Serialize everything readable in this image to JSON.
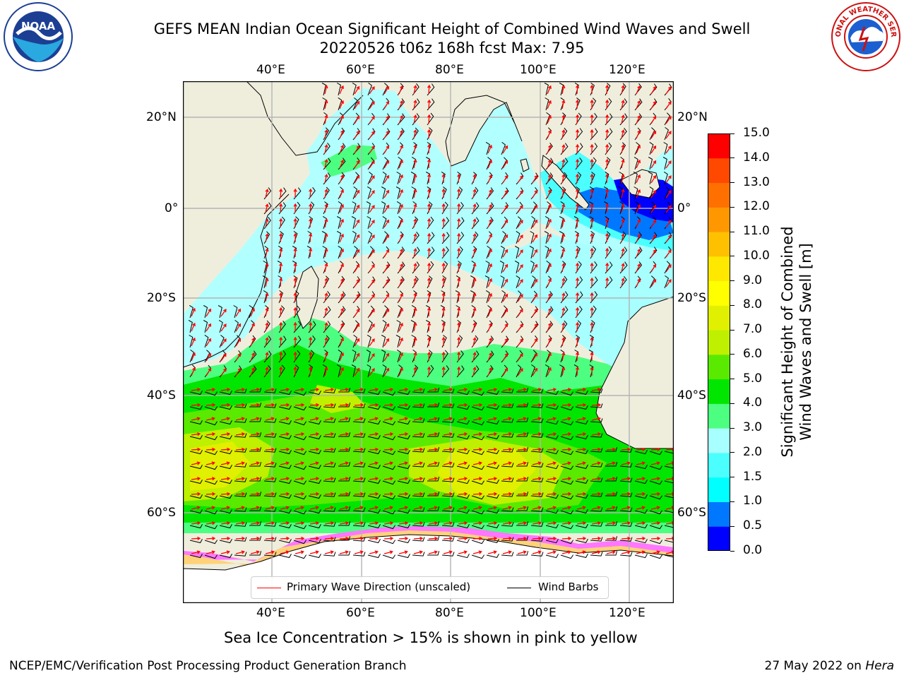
{
  "title": {
    "line1": "GEFS MEAN Indian Ocean Significant Height of Combined Wind Waves and Swell",
    "line2": "20220526 t06z 168h fcst   Max: 7.95"
  },
  "logos": {
    "left": {
      "name": "NOAA",
      "ring_text": "NATIONAL OCEANIC AND ATMOSPHERIC ADMINISTRATION",
      "bottom_text": "U.S. DEPARTMENT OF COMMERCE"
    },
    "right": {
      "name": "NATIONAL WEATHER SERVICE"
    }
  },
  "map": {
    "lon_labels": [
      "40°E",
      "60°E",
      "80°E",
      "100°E",
      "120°E"
    ],
    "lat_labels": [
      "20°N",
      "0°",
      "20°S",
      "40°S",
      "60°S"
    ],
    "colors": {
      "land": "#efeedd",
      "ocean_calm": "#b2ffff",
      "grid": "#b4b4b4",
      "wave_arrow": "#ff0000",
      "barb": "#000000",
      "ice": "#ffffff"
    }
  },
  "legend": {
    "wave": "Primary Wave Direction (unscaled)",
    "wind": "Wind Barbs"
  },
  "colorbar": {
    "label_line1": "Significant Height of Combined",
    "label_line2": "Wind Waves and Swell [m]",
    "ticks": [
      "0.0",
      "0.5",
      "1.0",
      "1.5",
      "2.0",
      "3.0",
      "4.0",
      "5.0",
      "6.0",
      "7.0",
      "8.0",
      "9.0",
      "10.0",
      "11.0",
      "12.0",
      "13.0",
      "14.0",
      "15.0"
    ],
    "colors": [
      "#0000ff",
      "#0077ff",
      "#00ffff",
      "#4cffff",
      "#a8ffff",
      "#4dff80",
      "#00e600",
      "#59ea00",
      "#bef000",
      "#e0f000",
      "#ffff00",
      "#ffe800",
      "#ffc000",
      "#ff9800",
      "#ff7000",
      "#ff4800",
      "#ff0000"
    ]
  },
  "note": "Sea Ice Concentration > 15% is shown in pink to yellow",
  "footer": {
    "left": "NCEP/EMC/Verification Post Processing Product Generation Branch",
    "right_date": "27 May 2022 on ",
    "right_host": "Hera"
  }
}
